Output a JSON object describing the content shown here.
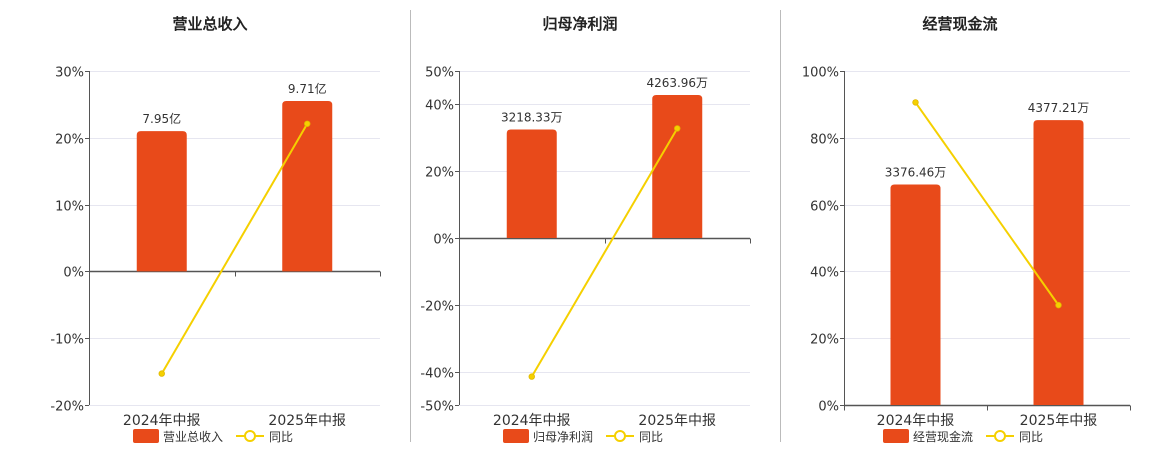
{
  "colors": {
    "bar": "#e84a1a",
    "line": "#f5d000",
    "axis": "#555555",
    "grid": "#e6e6f0",
    "text": "#333333",
    "divider": "#bbbbbb"
  },
  "chart_data": [
    {
      "type": "bar",
      "title": "营业总收入",
      "categories": [
        "2024年中报",
        "2025年中报"
      ],
      "ylim": [
        -20,
        30
      ],
      "ytick_values": [
        -20,
        -10,
        0,
        10,
        20,
        30
      ],
      "ytick_labels": [
        "-20%",
        "-10%",
        "0%",
        "10%",
        "20%",
        "30%"
      ],
      "grid": true,
      "legend_position": "bottom",
      "series": [
        {
          "name": "营业总收入",
          "type": "bar",
          "values": [
            21,
            25.5
          ],
          "labels": [
            "7.95亿",
            "9.71亿"
          ]
        },
        {
          "name": "同比",
          "type": "line",
          "values": [
            -15.3,
            22.1
          ]
        }
      ]
    },
    {
      "type": "bar",
      "title": "归母净利润",
      "categories": [
        "2024年中报",
        "2025年中报"
      ],
      "ylim": [
        -50,
        50
      ],
      "ytick_values": [
        -50,
        -40,
        -20,
        0,
        20,
        40,
        50
      ],
      "ytick_labels": [
        "-50%",
        "-40%",
        "-20%",
        "0%",
        "20%",
        "40%",
        "50%"
      ],
      "grid": true,
      "legend_position": "bottom",
      "series": [
        {
          "name": "归母净利润",
          "type": "bar",
          "values": [
            32.5,
            42.8
          ],
          "labels": [
            "3218.33万",
            "4263.96万"
          ]
        },
        {
          "name": "同比",
          "type": "line",
          "values": [
            -41.5,
            32.8
          ]
        }
      ]
    },
    {
      "type": "bar",
      "title": "经营现金流",
      "categories": [
        "2024年中报",
        "2025年中报"
      ],
      "ylim": [
        0,
        100
      ],
      "ytick_values": [
        0,
        20,
        40,
        60,
        80,
        100
      ],
      "ytick_labels": [
        "0%",
        "20%",
        "40%",
        "60%",
        "80%",
        "100%"
      ],
      "grid": true,
      "legend_position": "bottom",
      "series": [
        {
          "name": "经营现金流",
          "type": "bar",
          "values": [
            66,
            85.3
          ],
          "labels": [
            "3376.46万",
            "4377.21万"
          ]
        },
        {
          "name": "同比",
          "type": "line",
          "values": [
            90.6,
            29.9
          ]
        }
      ]
    }
  ]
}
